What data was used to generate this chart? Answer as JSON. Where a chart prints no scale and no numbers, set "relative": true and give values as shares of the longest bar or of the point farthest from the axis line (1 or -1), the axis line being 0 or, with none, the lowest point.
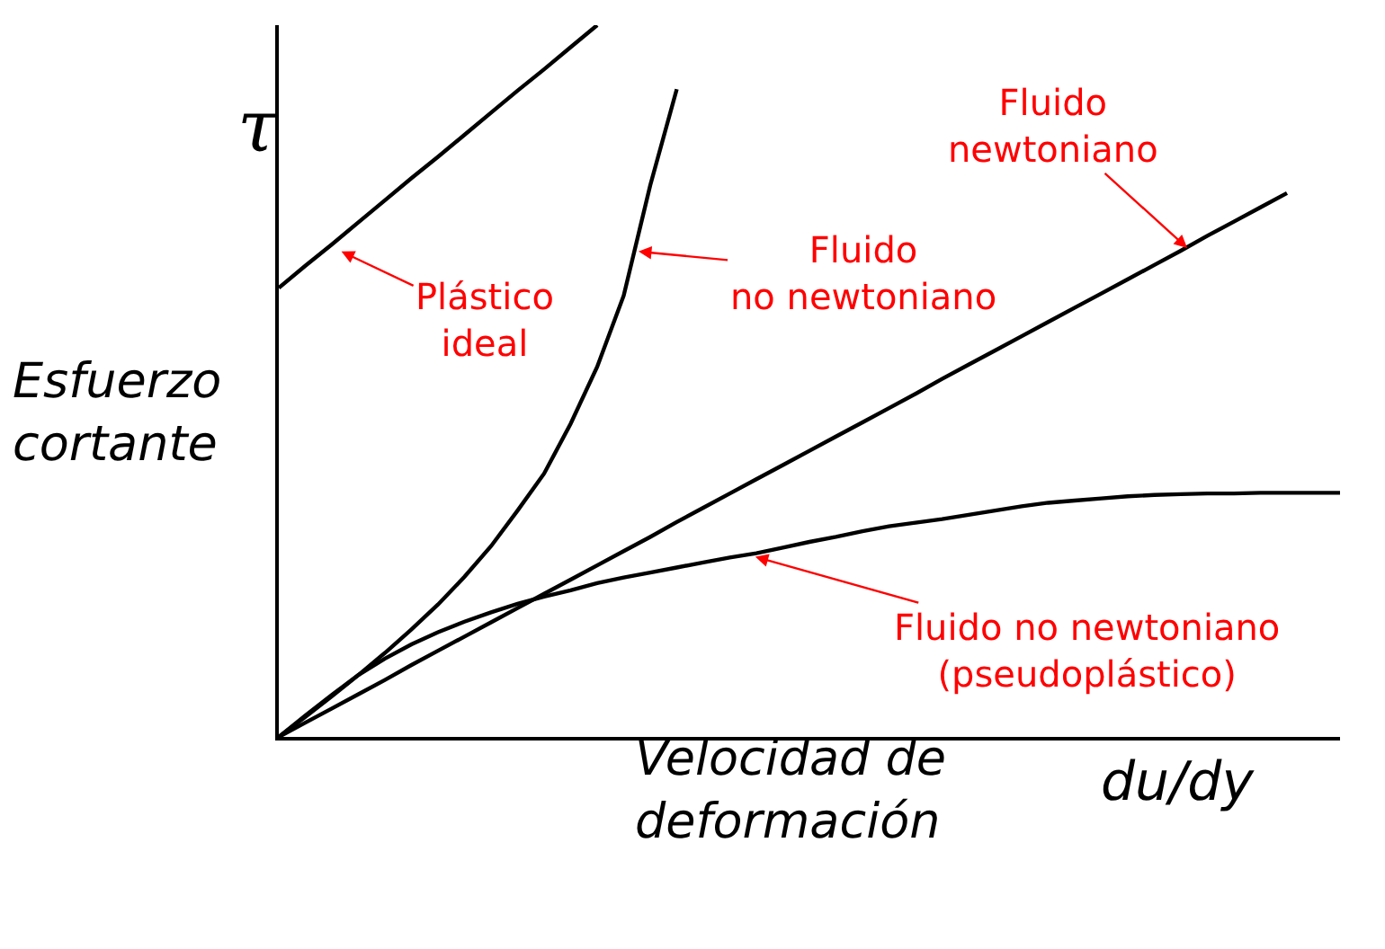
{
  "chart_data": {
    "type": "line",
    "relative": true,
    "xlabel": "Velocidad de\ndeformación",
    "ylabel": "Esfuerzo\ncortante",
    "categories": [
      null,
      null,
      null,
      null,
      null,
      null,
      null,
      null,
      null,
      null,
      null,
      null,
      null,
      null,
      null,
      null,
      null,
      null,
      null,
      null,
      null,
      null,
      null,
      null,
      null,
      null,
      null,
      null,
      null,
      null,
      null,
      null,
      null,
      null,
      null,
      null,
      null,
      null,
      null,
      null,
      null
    ],
    "series": [
      {
        "color": "#000000",
        "values": [
          0.631,
          0.662,
          0.692,
          0.723,
          0.754,
          0.785,
          0.815,
          0.846,
          0.877,
          0.908,
          0.938,
          0.969,
          1.0,
          null,
          null,
          null,
          null,
          null,
          null,
          null,
          null,
          null,
          null,
          null,
          null,
          null,
          null,
          null,
          null,
          null,
          null,
          null,
          null,
          null,
          null,
          null,
          null,
          null,
          null,
          null,
          null
        ]
      },
      {
        "color": "#000000",
        "values": [
          0,
          0.02,
          0.04,
          0.06,
          0.08,
          0.101,
          0.121,
          0.141,
          0.161,
          0.181,
          0.201,
          0.221,
          0.241,
          0.261,
          0.281,
          0.302,
          0.322,
          0.342,
          0.362,
          0.382,
          0.402,
          0.422,
          0.442,
          0.462,
          0.482,
          0.503,
          0.523,
          0.543,
          0.563,
          0.583,
          0.603,
          0.623,
          0.643,
          0.663,
          0.683,
          0.704,
          0.724,
          0.744,
          0.764,
          null,
          null
        ]
      },
      {
        "color": "#000000",
        "values": [
          0,
          0.028,
          0.057,
          0.087,
          0.118,
          0.151,
          0.186,
          0.225,
          0.268,
          0.318,
          0.37,
          0.44,
          0.52,
          0.62,
          0.775,
          0.91,
          null,
          null,
          null,
          null,
          null,
          null,
          null,
          null,
          null,
          null,
          null,
          null,
          null,
          null,
          null,
          null,
          null,
          null,
          null,
          null,
          null,
          null,
          null,
          null,
          null
        ]
      },
      {
        "color": "#000000",
        "values": [
          0,
          0.03,
          0.059,
          0.087,
          0.11,
          0.13,
          0.147,
          0.162,
          0.175,
          0.187,
          0.197,
          0.206,
          0.216,
          0.224,
          0.231,
          0.238,
          0.245,
          0.252,
          0.258,
          0.266,
          0.274,
          0.281,
          0.289,
          0.296,
          0.301,
          0.306,
          0.312,
          0.318,
          0.324,
          0.329,
          0.332,
          0.335,
          0.338,
          0.34,
          0.341,
          0.342,
          0.342,
          0.343,
          0.343,
          0.343,
          0.343
        ]
      }
    ],
    "annotations": [
      "Plástico\nideal",
      "Fluido\nno newtoniano",
      "Fluido\nnewtoniano",
      "Fluido no newtoniano\n(pseudoplástico)",
      "τ",
      "du/dy"
    ]
  }
}
